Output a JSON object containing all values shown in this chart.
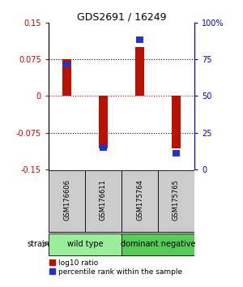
{
  "title": "GDS2691 / 16249",
  "samples": [
    "GSM176606",
    "GSM176611",
    "GSM175764",
    "GSM175765"
  ],
  "log10_ratio": [
    0.075,
    -0.107,
    0.1,
    -0.108
  ],
  "percentile_rank_scaled": [
    0.065,
    -0.105,
    0.115,
    -0.117
  ],
  "ylim": [
    -0.15,
    0.15
  ],
  "yticks_left": [
    -0.15,
    -0.075,
    0,
    0.075,
    0.15
  ],
  "ytick_labels_left": [
    "-0.15",
    "-0.075",
    "0",
    "0.075",
    "0.15"
  ],
  "right_ticks_pos": [
    -0.15,
    -0.075,
    0,
    0.075,
    0.15
  ],
  "right_tick_labels": [
    "0",
    "25",
    "50",
    "75",
    "100%"
  ],
  "hlines_black": [
    -0.075,
    0.075
  ],
  "hline_red": 0,
  "groups": [
    {
      "label": "wild type",
      "samples": [
        0,
        1
      ],
      "color": "#99ee99"
    },
    {
      "label": "dominant negative",
      "samples": [
        2,
        3
      ],
      "color": "#55cc55"
    }
  ],
  "strain_label": "strain",
  "bar_color_red": "#bb1100",
  "bar_color_blue": "#2233cc",
  "bar_width": 0.25,
  "blue_bar_width": 0.18,
  "blue_bar_height": 0.013,
  "legend_red": "log10 ratio",
  "legend_blue": "percentile rank within the sample",
  "bg_color": "#ffffff",
  "plot_bg": "#ffffff",
  "label_color_left": "#cc0000",
  "label_color_right": "#0000cc",
  "sample_box_color": "#cccccc",
  "title_fontsize": 9,
  "tick_fontsize": 7,
  "sample_fontsize": 6,
  "group_fontsize": 7,
  "legend_fontsize": 6.5
}
